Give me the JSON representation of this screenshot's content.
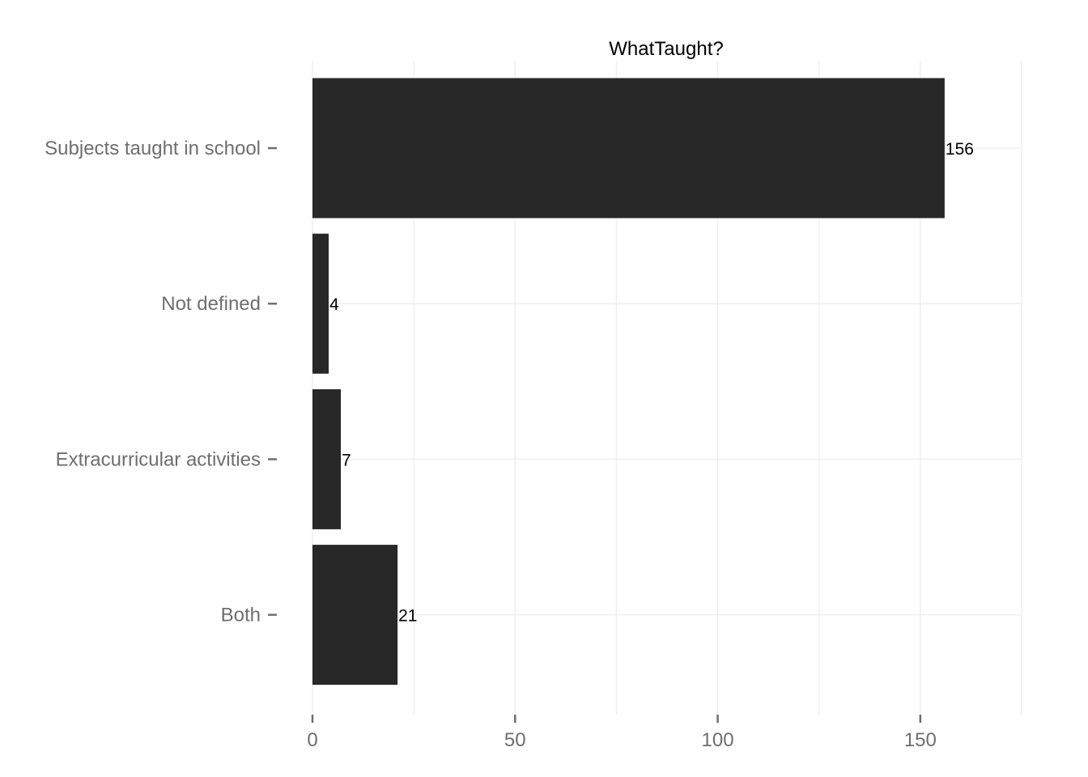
{
  "chart_data": {
    "type": "bar",
    "orientation": "horizontal",
    "title": "WhatTaught?",
    "xlabel": "",
    "ylabel": "",
    "categories": [
      "Subjects taught in school",
      "Not defined",
      "Extracurricular activities",
      "Both"
    ],
    "values": [
      156,
      4,
      7,
      21
    ],
    "xlim": [
      0,
      175
    ],
    "x_ticks": [
      0,
      50,
      100,
      150
    ],
    "x_tick_labels": [
      "0",
      "50",
      "100",
      "150"
    ],
    "data_labels": [
      "156",
      "4",
      "7",
      "21"
    ],
    "grid": true,
    "legend": "none",
    "colors": {
      "bar": "#282828",
      "grid": "#efefef",
      "axis_text": "#6e6e6e",
      "title_text": "#000000",
      "label_text": "#000000"
    }
  }
}
